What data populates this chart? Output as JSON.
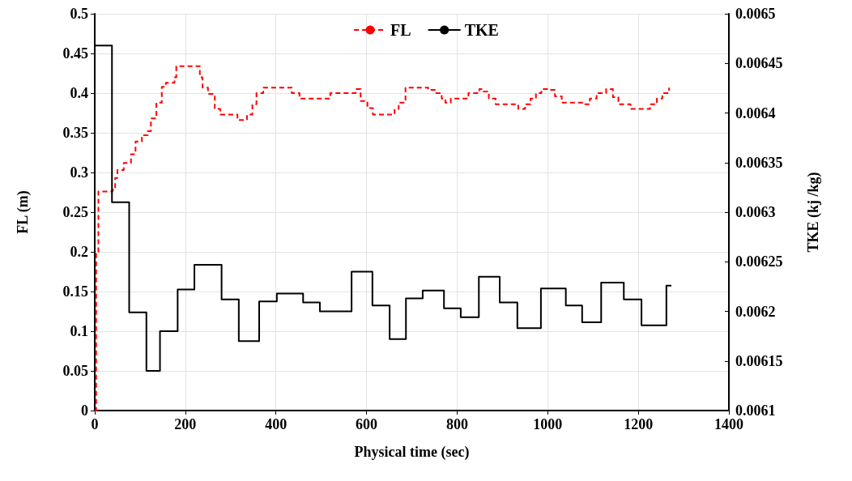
{
  "chart_data": {
    "type": "step",
    "xlabel": "Physical time (sec)",
    "ylabel": "FL (m)",
    "y2label": "TKE (kj /kg)",
    "xlim": [
      0,
      1400
    ],
    "xticks": [
      0,
      200,
      400,
      600,
      800,
      1000,
      1200,
      1400
    ],
    "ylim": [
      0,
      0.5
    ],
    "yticks": [
      0,
      0.05,
      0.1,
      0.15,
      0.2,
      0.25,
      0.3,
      0.35,
      0.4,
      0.45,
      0.5
    ],
    "y2lim": [
      0.0061,
      0.0065
    ],
    "y2ticks": [
      0.0061,
      0.00615,
      0.0062,
      0.00625,
      0.0063,
      0.00635,
      0.0064,
      0.00645,
      0.0065
    ],
    "grid": true,
    "legend": "top",
    "marker": "none",
    "series": [
      {
        "name": "FL",
        "color": "#ff0000",
        "line_style": "dashed",
        "x": [
          0,
          3,
          8,
          39,
          45,
          50,
          64,
          80,
          90,
          104,
          117,
          124,
          136,
          148,
          157,
          176,
          180,
          220,
          232,
          238,
          250,
          265,
          277,
          306,
          315,
          324,
          336,
          348,
          357,
          372,
          420,
          435,
          452,
          514,
          520,
          576,
          587,
          602,
          614,
          647,
          662,
          671,
          686,
          703,
          724,
          736,
          751,
          766,
          774,
          786,
          813,
          825,
          849,
          858,
          870,
          885,
          935,
          950,
          962,
          974,
          986,
          1001,
          1016,
          1031,
          1078,
          1093,
          1108,
          1129,
          1144,
          1156,
          1183,
          1217,
          1226,
          1241,
          1253,
          1268
        ],
        "values": [
          0,
          0.2,
          0.276,
          0.278,
          0.293,
          0.303,
          0.312,
          0.323,
          0.339,
          0.347,
          0.352,
          0.368,
          0.388,
          0.408,
          0.413,
          0.42,
          0.434,
          0.434,
          0.42,
          0.407,
          0.399,
          0.38,
          0.373,
          0.373,
          0.366,
          0.366,
          0.373,
          0.386,
          0.4,
          0.407,
          0.407,
          0.4,
          0.393,
          0.393,
          0.4,
          0.405,
          0.39,
          0.381,
          0.373,
          0.373,
          0.38,
          0.388,
          0.407,
          0.407,
          0.407,
          0.404,
          0.4,
          0.393,
          0.388,
          0.393,
          0.393,
          0.4,
          0.405,
          0.402,
          0.393,
          0.386,
          0.38,
          0.386,
          0.393,
          0.4,
          0.405,
          0.404,
          0.396,
          0.388,
          0.386,
          0.393,
          0.4,
          0.405,
          0.395,
          0.386,
          0.38,
          0.38,
          0.386,
          0.393,
          0.4,
          0.407
        ]
      },
      {
        "name": "TKE",
        "color": "#000000",
        "line_style": "solid",
        "axis": "y2",
        "x": [
          0,
          38,
          76,
          114,
          144,
          183,
          220,
          280,
          318,
          363,
          402,
          460,
          497,
          567,
          613,
          651,
          687,
          724,
          771,
          808,
          848,
          894,
          933,
          985,
          1040,
          1076,
          1118,
          1168,
          1207,
          1262,
          1273
        ],
        "values": [
          0.006468,
          0.00631,
          0.006199,
          0.00614,
          0.00618,
          0.006222,
          0.006247,
          0.006212,
          0.00617,
          0.00621,
          0.006218,
          0.006209,
          0.0062,
          0.00624,
          0.006206,
          0.006172,
          0.006213,
          0.006221,
          0.006203,
          0.006194,
          0.006235,
          0.006209,
          0.006183,
          0.006223,
          0.006206,
          0.006189,
          0.006229,
          0.006212,
          0.006186,
          0.006226,
          0.006226
        ]
      }
    ]
  }
}
